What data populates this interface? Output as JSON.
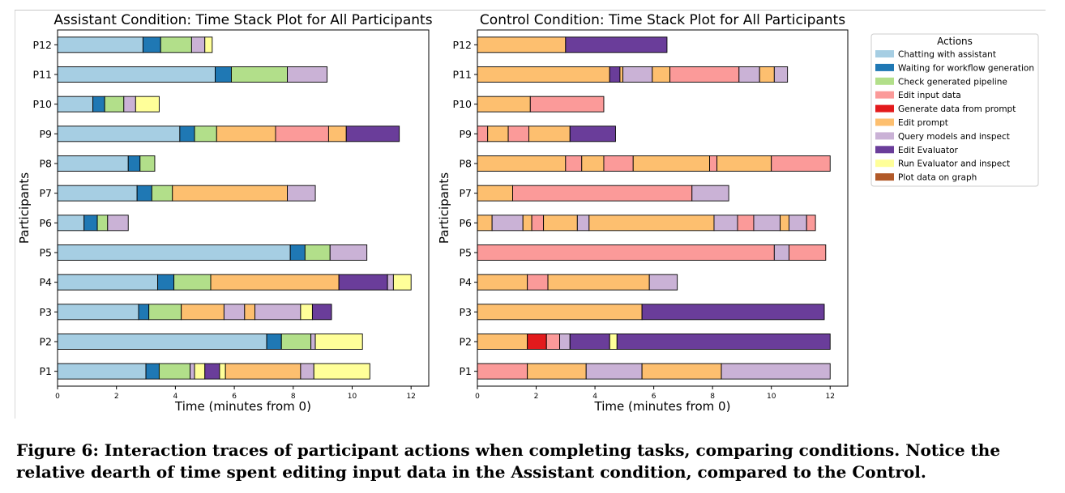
{
  "caption": "Figure 6: Interaction traces of participant actions when completing tasks, comparing conditions. Notice the relative dearth of time spent editing input data in the Assistant condition, compared to the Control.",
  "legend": {
    "title": "Actions",
    "items": [
      {
        "key": "chat",
        "label": "Chatting with assistant",
        "color": "#a6cee3"
      },
      {
        "key": "wait",
        "label": "Waiting for workflow generation",
        "color": "#1f78b4"
      },
      {
        "key": "check",
        "label": "Check generated pipeline",
        "color": "#b2df8a"
      },
      {
        "key": "input",
        "label": "Edit input data",
        "color": "#fb9a99"
      },
      {
        "key": "gen",
        "label": "Generate data from prompt",
        "color": "#e31a1c"
      },
      {
        "key": "prompt",
        "label": "Edit prompt",
        "color": "#fdbf6f"
      },
      {
        "key": "query",
        "label": "Query models and inspect",
        "color": "#cab2d6"
      },
      {
        "key": "eval",
        "label": "Edit Evaluator",
        "color": "#6a3d9a"
      },
      {
        "key": "run",
        "label": "Run Evaluator and inspect",
        "color": "#ffff99"
      },
      {
        "key": "plot",
        "label": "Plot data on graph",
        "color": "#b15928"
      }
    ]
  },
  "chart_data": [
    {
      "type": "bar",
      "orientation": "horizontal-stacked",
      "title": "Assistant Condition: Time Stack Plot for All Participants",
      "xlabel": "Time (minutes from 0)",
      "ylabel": "Participants",
      "xlim": [
        0,
        12.6
      ],
      "xticks": [
        0,
        2,
        4,
        6,
        8,
        10,
        12
      ],
      "categories": [
        "P1",
        "P2",
        "P3",
        "P4",
        "P5",
        "P6",
        "P7",
        "P8",
        "P9",
        "P10",
        "P11",
        "P12"
      ],
      "grid": false,
      "rows": [
        {
          "participant": "P1",
          "segments": [
            [
              "chat",
              0,
              3.0
            ],
            [
              "wait",
              3.0,
              3.45
            ],
            [
              "check",
              3.45,
              4.5
            ],
            [
              "query",
              4.5,
              4.65
            ],
            [
              "run",
              4.65,
              5.0
            ],
            [
              "eval",
              5.0,
              5.5
            ],
            [
              "run",
              5.5,
              5.7
            ],
            [
              "prompt",
              5.7,
              8.25
            ],
            [
              "query",
              8.25,
              8.7
            ],
            [
              "run",
              8.7,
              10.6
            ]
          ]
        },
        {
          "participant": "P2",
          "segments": [
            [
              "chat",
              0,
              7.1
            ],
            [
              "wait",
              7.1,
              7.6
            ],
            [
              "check",
              7.6,
              8.6
            ],
            [
              "query",
              8.6,
              8.75
            ],
            [
              "run",
              8.75,
              10.35
            ]
          ]
        },
        {
          "participant": "P3",
          "segments": [
            [
              "chat",
              0,
              2.75
            ],
            [
              "wait",
              2.75,
              3.1
            ],
            [
              "check",
              3.1,
              4.2
            ],
            [
              "prompt",
              4.2,
              5.65
            ],
            [
              "query",
              5.65,
              6.35
            ],
            [
              "prompt",
              6.35,
              6.7
            ],
            [
              "query",
              6.7,
              8.25
            ],
            [
              "run",
              8.25,
              8.65
            ],
            [
              "eval",
              8.65,
              9.3
            ]
          ]
        },
        {
          "participant": "P4",
          "segments": [
            [
              "chat",
              0,
              3.4
            ],
            [
              "wait",
              3.4,
              3.95
            ],
            [
              "check",
              3.95,
              5.2
            ],
            [
              "prompt",
              5.2,
              9.55
            ],
            [
              "eval",
              9.55,
              11.2
            ],
            [
              "query",
              11.2,
              11.4
            ],
            [
              "run",
              11.4,
              12.0
            ]
          ]
        },
        {
          "participant": "P5",
          "segments": [
            [
              "chat",
              0,
              7.9
            ],
            [
              "wait",
              7.9,
              8.4
            ],
            [
              "check",
              8.4,
              9.25
            ],
            [
              "query",
              9.25,
              10.5
            ]
          ]
        },
        {
          "participant": "P6",
          "segments": [
            [
              "chat",
              0,
              0.9
            ],
            [
              "wait",
              0.9,
              1.35
            ],
            [
              "check",
              1.35,
              1.7
            ],
            [
              "query",
              1.7,
              2.4
            ]
          ]
        },
        {
          "participant": "P7",
          "segments": [
            [
              "chat",
              0,
              2.7
            ],
            [
              "wait",
              2.7,
              3.2
            ],
            [
              "check",
              3.2,
              3.9
            ],
            [
              "prompt",
              3.9,
              7.8
            ],
            [
              "query",
              7.8,
              8.75
            ]
          ]
        },
        {
          "participant": "P8",
          "segments": [
            [
              "chat",
              0,
              2.4
            ],
            [
              "wait",
              2.4,
              2.8
            ],
            [
              "check",
              2.8,
              3.3
            ]
          ]
        },
        {
          "participant": "P9",
          "segments": [
            [
              "chat",
              0,
              4.15
            ],
            [
              "wait",
              4.15,
              4.65
            ],
            [
              "check",
              4.65,
              5.4
            ],
            [
              "prompt",
              5.4,
              7.4
            ],
            [
              "input",
              7.4,
              9.2
            ],
            [
              "prompt",
              9.2,
              9.8
            ],
            [
              "eval",
              9.8,
              11.6
            ]
          ]
        },
        {
          "participant": "P10",
          "segments": [
            [
              "chat",
              0,
              1.2
            ],
            [
              "wait",
              1.2,
              1.6
            ],
            [
              "check",
              1.6,
              2.25
            ],
            [
              "query",
              2.25,
              2.65
            ],
            [
              "run",
              2.65,
              3.45
            ]
          ]
        },
        {
          "participant": "P11",
          "segments": [
            [
              "chat",
              0,
              5.35
            ],
            [
              "wait",
              5.35,
              5.9
            ],
            [
              "check",
              5.9,
              7.8
            ],
            [
              "query",
              7.8,
              9.15
            ]
          ]
        },
        {
          "participant": "P12",
          "segments": [
            [
              "chat",
              0,
              2.9
            ],
            [
              "wait",
              2.9,
              3.5
            ],
            [
              "check",
              3.5,
              4.55
            ],
            [
              "query",
              4.55,
              5.0
            ],
            [
              "run",
              5.0,
              5.25
            ]
          ]
        }
      ]
    },
    {
      "type": "bar",
      "orientation": "horizontal-stacked",
      "title": "Control Condition: Time Stack Plot for All Participants",
      "xlabel": "Time (minutes from 0)",
      "ylabel": "Participants",
      "xlim": [
        0,
        12.6
      ],
      "xticks": [
        0,
        2,
        4,
        6,
        8,
        10,
        12
      ],
      "categories": [
        "P1",
        "P2",
        "P3",
        "P4",
        "P5",
        "P6",
        "P7",
        "P8",
        "P9",
        "P10",
        "P11",
        "P12"
      ],
      "grid": false,
      "rows": [
        {
          "participant": "P1",
          "segments": [
            [
              "input",
              0,
              1.7
            ],
            [
              "prompt",
              1.7,
              3.7
            ],
            [
              "query",
              3.7,
              5.6
            ],
            [
              "prompt",
              5.6,
              8.3
            ],
            [
              "query",
              8.3,
              12.0
            ]
          ]
        },
        {
          "participant": "P2",
          "segments": [
            [
              "prompt",
              0,
              1.7
            ],
            [
              "gen",
              1.7,
              2.35
            ],
            [
              "input",
              2.35,
              2.8
            ],
            [
              "query",
              2.8,
              3.15
            ],
            [
              "eval",
              3.15,
              4.5
            ],
            [
              "run",
              4.5,
              4.75
            ],
            [
              "eval",
              4.75,
              12.0
            ]
          ]
        },
        {
          "participant": "P3",
          "segments": [
            [
              "prompt",
              0,
              5.6
            ],
            [
              "eval",
              5.6,
              11.8
            ]
          ]
        },
        {
          "participant": "P4",
          "segments": [
            [
              "prompt",
              0,
              1.7
            ],
            [
              "input",
              1.7,
              2.4
            ],
            [
              "prompt",
              2.4,
              5.85
            ],
            [
              "query",
              5.85,
              6.8
            ]
          ]
        },
        {
          "participant": "P5",
          "segments": [
            [
              "input",
              0,
              10.1
            ],
            [
              "query",
              10.1,
              10.6
            ],
            [
              "input",
              10.6,
              11.85
            ]
          ]
        },
        {
          "participant": "P6",
          "segments": [
            [
              "prompt",
              0,
              0.5
            ],
            [
              "query",
              0.5,
              1.55
            ],
            [
              "prompt",
              1.55,
              1.85
            ],
            [
              "input",
              1.85,
              2.25
            ],
            [
              "prompt",
              2.25,
              3.4
            ],
            [
              "query",
              3.4,
              3.8
            ],
            [
              "prompt",
              3.8,
              8.05
            ],
            [
              "query",
              8.05,
              8.85
            ],
            [
              "input",
              8.85,
              9.4
            ],
            [
              "query",
              9.4,
              10.3
            ],
            [
              "prompt",
              10.3,
              10.6
            ],
            [
              "query",
              10.6,
              11.2
            ],
            [
              "input",
              11.2,
              11.5
            ]
          ]
        },
        {
          "participant": "P7",
          "segments": [
            [
              "prompt",
              0,
              1.2
            ],
            [
              "input",
              1.2,
              7.3
            ],
            [
              "query",
              7.3,
              8.55
            ]
          ]
        },
        {
          "participant": "P8",
          "segments": [
            [
              "prompt",
              0,
              3.0
            ],
            [
              "input",
              3.0,
              3.55
            ],
            [
              "prompt",
              3.55,
              4.3
            ],
            [
              "input",
              4.3,
              5.3
            ],
            [
              "prompt",
              5.3,
              7.9
            ],
            [
              "input",
              7.9,
              8.15
            ],
            [
              "prompt",
              8.15,
              10.0
            ],
            [
              "input",
              10.0,
              12.0
            ]
          ]
        },
        {
          "participant": "P9",
          "segments": [
            [
              "input",
              0,
              0.35
            ],
            [
              "prompt",
              0.35,
              1.05
            ],
            [
              "input",
              1.05,
              1.75
            ],
            [
              "prompt",
              1.75,
              3.15
            ],
            [
              "eval",
              3.15,
              4.7
            ]
          ]
        },
        {
          "participant": "P10",
          "segments": [
            [
              "prompt",
              0,
              1.8
            ],
            [
              "input",
              1.8,
              4.3
            ]
          ]
        },
        {
          "participant": "P11",
          "segments": [
            [
              "prompt",
              0,
              4.5
            ],
            [
              "eval",
              4.5,
              4.85
            ],
            [
              "prompt",
              4.85,
              4.95
            ],
            [
              "query",
              4.95,
              5.95
            ],
            [
              "prompt",
              5.95,
              6.55
            ],
            [
              "input",
              6.55,
              8.9
            ],
            [
              "query",
              8.9,
              9.6
            ],
            [
              "prompt",
              9.6,
              10.1
            ],
            [
              "query",
              10.1,
              10.55
            ]
          ]
        },
        {
          "participant": "P12",
          "segments": [
            [
              "prompt",
              0,
              3.0
            ],
            [
              "eval",
              3.0,
              6.45
            ]
          ]
        }
      ]
    }
  ]
}
